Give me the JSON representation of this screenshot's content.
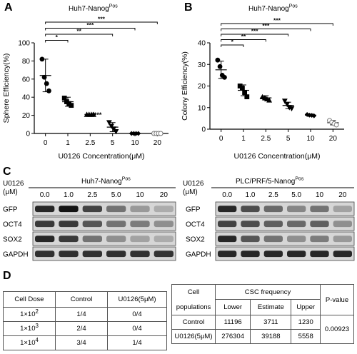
{
  "panels": {
    "a": {
      "letter": "A",
      "title_main": "Huh7-Nanog",
      "title_sup": "Pos"
    },
    "b": {
      "letter": "B",
      "title_main": "Huh7-Nanog",
      "title_sup": "Pos"
    },
    "c": {
      "letter": "C"
    },
    "d": {
      "letter": "D"
    }
  },
  "chart_data": [
    {
      "type": "scatter",
      "ylabel": "Sphere Efficiency(%)",
      "xlabel": "U0126 Concentration(μM)",
      "categories": [
        "0",
        "1",
        "2.5",
        "5",
        "10",
        "20"
      ],
      "ylim": [
        0,
        100
      ],
      "yticks": [
        "0",
        "20",
        "40",
        "60",
        "80",
        "100"
      ],
      "means": [
        64,
        35,
        21,
        7,
        0,
        0
      ],
      "sd": [
        18,
        5,
        0,
        5,
        0,
        0
      ],
      "points": [
        [
          82,
          62,
          55,
          47
        ],
        [
          39,
          35,
          33,
          31
        ],
        [
          21,
          21,
          21,
          21
        ],
        [
          12,
          8,
          5,
          2
        ],
        [
          0,
          0,
          0,
          0
        ],
        [
          0,
          0,
          0,
          0
        ]
      ],
      "significance": [
        {
          "compare": [
            "0",
            "1"
          ],
          "label": "*"
        },
        {
          "compare": [
            "0",
            "5"
          ],
          "label": "**"
        },
        {
          "compare": [
            "0",
            "10"
          ],
          "label": "***"
        },
        {
          "compare": [
            "0",
            "20"
          ],
          "label": "***"
        }
      ],
      "inline_annotation": {
        "category": "2.5",
        "label": "****"
      }
    },
    {
      "type": "scatter",
      "ylabel": "Colony Efficiency(%)",
      "xlabel": "U0126 Concentration(μM)",
      "categories": [
        "0",
        "1",
        "2.5",
        "5",
        "10",
        "20"
      ],
      "ylim": [
        0,
        40
      ],
      "yticks": [
        "0",
        "10",
        "20",
        "30",
        "40"
      ],
      "means": [
        27.5,
        18,
        14.5,
        11,
        6.5,
        3
      ],
      "sd": [
        4,
        2.5,
        1,
        1.5,
        0.5,
        1
      ],
      "points": [
        [
          32,
          29,
          25,
          24
        ],
        [
          20,
          19,
          17,
          15
        ],
        [
          15,
          14.5,
          14,
          13.5
        ],
        [
          13,
          11.5,
          10,
          9.5
        ],
        [
          6.8,
          6.5,
          6.4,
          6.2
        ],
        [
          4,
          3.2,
          2.5,
          2
        ]
      ],
      "significance": [
        {
          "compare": [
            "0",
            "1"
          ],
          "label": "*"
        },
        {
          "compare": [
            "0",
            "2.5"
          ],
          "label": "**"
        },
        {
          "compare": [
            "0",
            "5"
          ],
          "label": "***"
        },
        {
          "compare": [
            "0",
            "10"
          ],
          "label": "***"
        },
        {
          "compare": [
            "0",
            "20"
          ],
          "label": "***"
        }
      ]
    }
  ],
  "western_blot": {
    "left": {
      "title_main": "Huh7-Nanog",
      "title_sup": "Pos",
      "u_label_1": "U0126",
      "u_label_2": "(μM)",
      "concentrations": [
        "0.0",
        "1.0",
        "2.5",
        "5.0",
        "10",
        "20"
      ],
      "rows": [
        {
          "label": "GFP",
          "intensity": [
            0.85,
            0.95,
            0.7,
            0.45,
            0.25,
            0.15
          ]
        },
        {
          "label": "OCT4",
          "intensity": [
            0.75,
            0.75,
            0.6,
            0.45,
            0.4,
            0.3
          ]
        },
        {
          "label": "SOX2",
          "intensity": [
            0.85,
            0.75,
            0.45,
            0.3,
            0.2,
            0.15
          ]
        },
        {
          "label": "GAPDH",
          "intensity": [
            0.8,
            0.8,
            0.8,
            0.8,
            0.8,
            0.78
          ]
        }
      ]
    },
    "right": {
      "title_main": "PLC/PRF/5-Nanog",
      "title_sup": "Pos",
      "u_label_1": "U0126",
      "u_label_2": "(μM)",
      "concentrations": [
        "0.0",
        "1.0",
        "2.5",
        "5.0",
        "10",
        "20"
      ],
      "rows": [
        {
          "label": "GFP",
          "intensity": [
            0.85,
            0.65,
            0.5,
            0.35,
            0.45,
            0.2
          ]
        },
        {
          "label": "OCT4",
          "intensity": [
            0.7,
            0.65,
            0.55,
            0.5,
            0.55,
            0.3
          ]
        },
        {
          "label": "SOX2",
          "intensity": [
            0.85,
            0.6,
            0.45,
            0.3,
            0.4,
            0.25
          ]
        },
        {
          "label": "GAPDH",
          "intensity": [
            0.85,
            0.85,
            0.85,
            0.85,
            0.85,
            0.85
          ]
        }
      ]
    }
  },
  "table_left": {
    "headers": [
      "Cell Dose",
      "Control",
      "U0126(5μM)"
    ],
    "rows": [
      {
        "dose_base": "1×10",
        "dose_exp": "2",
        "control": "1/4",
        "u0126": "0/4"
      },
      {
        "dose_base": "1×10",
        "dose_exp": "3",
        "control": "2/4",
        "u0126": "0/4"
      },
      {
        "dose_base": "1×10",
        "dose_exp": "4",
        "control": "3/4",
        "u0126": "1/4"
      }
    ]
  },
  "table_right": {
    "header_cell_1": "Cell",
    "header_cell_2": "populations",
    "header_csc": "CSC frequency",
    "header_p": "P-value",
    "sub_headers": [
      "Lower",
      "Estimate",
      "Upper"
    ],
    "rows": [
      {
        "population": "Control",
        "lower": "11196",
        "estimate": "3711",
        "upper": "1230"
      },
      {
        "population": "U0126(5μM)",
        "lower": "276304",
        "estimate": "39188",
        "upper": "5558"
      }
    ],
    "p_value": "0.00923"
  }
}
